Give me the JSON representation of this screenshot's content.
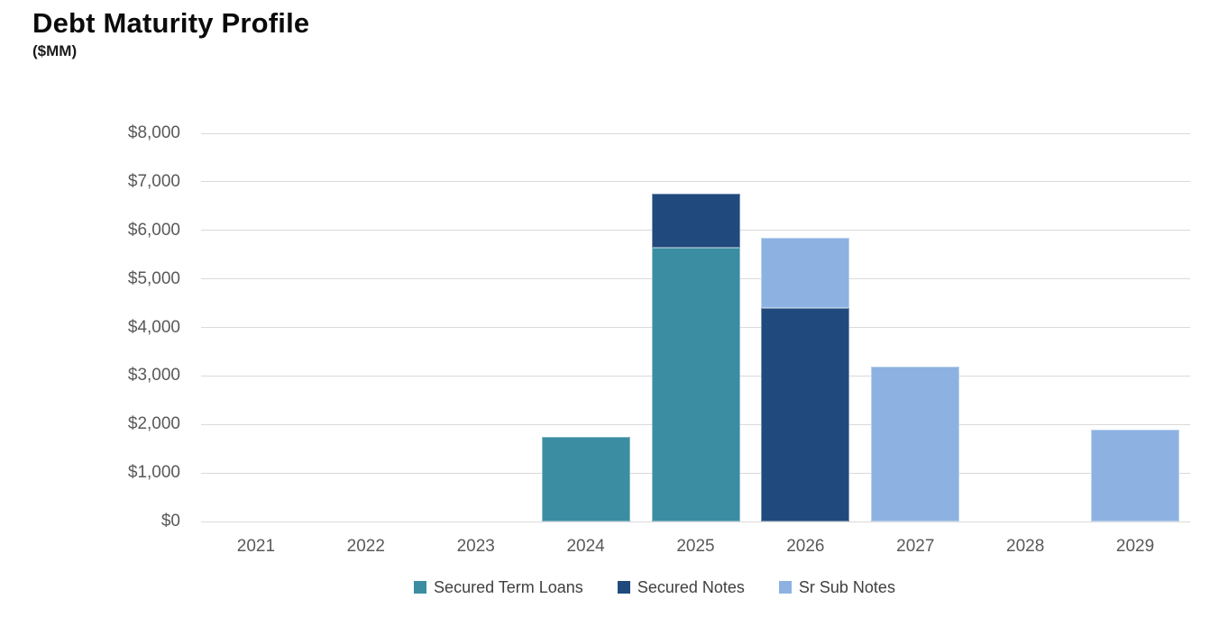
{
  "header": {
    "title": "Debt Maturity Profile",
    "subtitle": "($MM)"
  },
  "chart_data": {
    "type": "bar",
    "stacked": true,
    "title": "Debt Maturity Profile",
    "subtitle": "($MM)",
    "units": "$MM",
    "categories": [
      "2021",
      "2022",
      "2023",
      "2024",
      "2025",
      "2026",
      "2027",
      "2028",
      "2029"
    ],
    "series": [
      {
        "name": "Secured Term Loans",
        "color": "#3B8DA2",
        "values": [
          0,
          0,
          0,
          1750,
          5650,
          0,
          0,
          0,
          0
        ]
      },
      {
        "name": "Secured Notes",
        "color": "#204A7D",
        "values": [
          0,
          0,
          0,
          0,
          1100,
          4400,
          0,
          0,
          0
        ]
      },
      {
        "name": "Sr Sub Notes",
        "color": "#8DB2E2",
        "values": [
          0,
          0,
          0,
          0,
          0,
          1450,
          3200,
          0,
          1900
        ]
      }
    ],
    "stack_totals": {
      "2024": 1750,
      "2025": 6750,
      "2026": 5850,
      "2027": 3200,
      "2029": 1900
    },
    "ylim": [
      0,
      8000
    ],
    "y_ticks": [
      {
        "value": 0,
        "label": "$0"
      },
      {
        "value": 1000,
        "label": "$1,000"
      },
      {
        "value": 2000,
        "label": "$2,000"
      },
      {
        "value": 3000,
        "label": "$3,000"
      },
      {
        "value": 4000,
        "label": "$4,000"
      },
      {
        "value": 5000,
        "label": "$5,000"
      },
      {
        "value": 6000,
        "label": "$6,000"
      },
      {
        "value": 7000,
        "label": "$7,000"
      },
      {
        "value": 8000,
        "label": "$8,000"
      }
    ],
    "xlabel": "",
    "ylabel": "",
    "grid": "horizontal",
    "gridline_color": "#DADADA",
    "axis_label_color": "#595959",
    "legend_position": "bottom",
    "legend_text_color": "#404040"
  }
}
